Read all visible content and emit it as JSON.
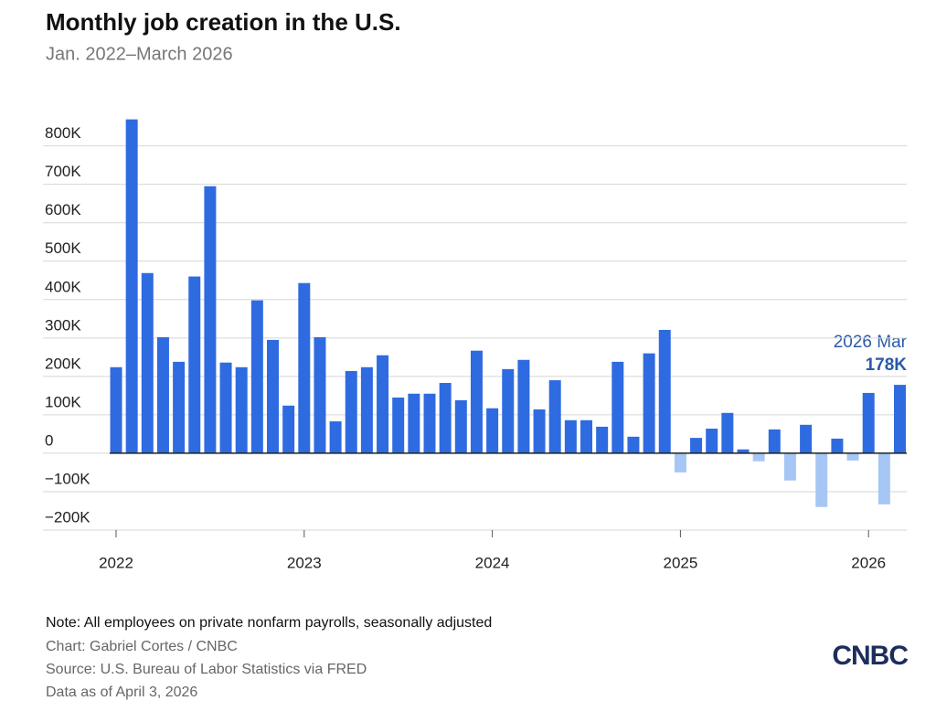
{
  "chart_data": {
    "type": "bar",
    "title": "Monthly job creation in the U.S.",
    "subtitle": "Jan. 2022–March 2026",
    "x": [
      "2022-01",
      "2022-02",
      "2022-03",
      "2022-04",
      "2022-05",
      "2022-06",
      "2022-07",
      "2022-08",
      "2022-09",
      "2022-10",
      "2022-11",
      "2022-12",
      "2023-01",
      "2023-02",
      "2023-03",
      "2023-04",
      "2023-05",
      "2023-06",
      "2023-07",
      "2023-08",
      "2023-09",
      "2023-10",
      "2023-11",
      "2023-12",
      "2024-01",
      "2024-02",
      "2024-03",
      "2024-04",
      "2024-05",
      "2024-06",
      "2024-07",
      "2024-08",
      "2024-09",
      "2024-10",
      "2024-11",
      "2024-12",
      "2025-01",
      "2025-02",
      "2025-03",
      "2025-04",
      "2025-05",
      "2025-06",
      "2025-07",
      "2025-08",
      "2025-09",
      "2025-10",
      "2025-11",
      "2025-12",
      "2026-01",
      "2026-02",
      "2026-03"
    ],
    "values": [
      224,
      869,
      469,
      302,
      238,
      460,
      695,
      236,
      224,
      398,
      295,
      124,
      443,
      302,
      83,
      214,
      224,
      255,
      145,
      155,
      155,
      183,
      138,
      267,
      117,
      219,
      243,
      114,
      190,
      86,
      86,
      69,
      238,
      43,
      260,
      321,
      -50,
      40,
      64,
      105,
      10,
      -21,
      62,
      -71,
      74,
      -140,
      38,
      -19,
      157,
      -133,
      178
    ],
    "value_labels": [
      null,
      null,
      null,
      null,
      null,
      null,
      null,
      null,
      null,
      null,
      null,
      null,
      null,
      null,
      null,
      null,
      null,
      null,
      null,
      null,
      null,
      null,
      null,
      null,
      null,
      null,
      null,
      null,
      null,
      null,
      null,
      null,
      null,
      null,
      null,
      null,
      null,
      null,
      null,
      null,
      null,
      null,
      null,
      null,
      null,
      null,
      null,
      null,
      null,
      null,
      "178K"
    ],
    "annotation": "2026 Mar",
    "color_positive": "#2f6be0",
    "color_negative": "#a6c7f5",
    "ylim": [
      -200,
      880
    ],
    "yticks": [
      {
        "value": -200,
        "label": "−200K"
      },
      {
        "value": -100,
        "label": "−100K"
      },
      0,
      {
        "value": 100,
        "label": "100K"
      },
      {
        "value": 200,
        "label": "200K"
      },
      {
        "value": 300,
        "label": "300K"
      },
      {
        "value": 400,
        "label": "400K"
      },
      {
        "value": 500,
        "label": "500K"
      },
      {
        "value": 600,
        "label": "600K"
      },
      {
        "value": 700,
        "label": "700K"
      },
      {
        "value": 800,
        "label": "800K"
      }
    ],
    "xticks": [
      2022,
      2023,
      2024,
      2025,
      2026
    ],
    "grid": true,
    "note": "Note: All employees on private nonfarm payrolls, seasonally adjusted",
    "credit": "Chart: Gabriel Cortes / CNBC",
    "source": "Source: U.S. Bureau of Labor Statistics via FRED",
    "data_as_of": "Data as of April 3, 2026",
    "logo": "CNBC"
  }
}
